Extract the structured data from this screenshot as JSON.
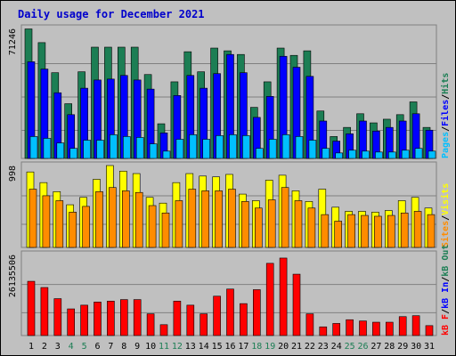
{
  "chart_data": {
    "type": "bar",
    "title": "Daily usage for December 2021",
    "categories": [
      "1",
      "2",
      "3",
      "4",
      "5",
      "6",
      "7",
      "8",
      "9",
      "10",
      "11",
      "12",
      "13",
      "14",
      "15",
      "16",
      "17",
      "18",
      "19",
      "20",
      "21",
      "22",
      "23",
      "24",
      "25",
      "26",
      "27",
      "28",
      "29",
      "30",
      "31"
    ],
    "weekend_days": [
      "4",
      "5",
      "11",
      "12",
      "18",
      "19",
      "25",
      "26"
    ],
    "panels": [
      {
        "ylim": [
          0,
          71246
        ],
        "max_label": "71246",
        "legend": [
          "Pages",
          "Files",
          "Hits"
        ],
        "series": [
          {
            "name": "Hits",
            "color": "#1c7e54",
            "values": [
              71000,
              63500,
              47000,
              30000,
              47500,
              61000,
              61000,
              61000,
              61000,
              46000,
              19000,
              42000,
              58500,
              47500,
              60500,
              59000,
              57000,
              28000,
              42000,
              60500,
              56500,
              59000,
              26000,
              12000,
              17000,
              24500,
              19500,
              21500,
              24000,
              31000,
              17000
            ]
          },
          {
            "name": "Files",
            "color": "#0000ff",
            "values": [
              53000,
              49000,
              36000,
              24000,
              38500,
              43000,
              43500,
              45500,
              43000,
              38000,
              14000,
              34500,
              45500,
              38500,
              46500,
              57000,
              47000,
              22500,
              34000,
              56000,
              50000,
              45000,
              20500,
              9500,
              13500,
              20500,
              15000,
              17000,
              20500,
              24500,
              15500
            ]
          },
          {
            "name": "Pages",
            "color": "#00bfff",
            "values": [
              12000,
              11000,
              8500,
              5500,
              10000,
              10000,
              13000,
              12000,
              11500,
              8000,
              4000,
              10500,
              13000,
              10500,
              12500,
              13000,
              12500,
              5500,
              10500,
              13000,
              12000,
              10000,
              5500,
              3000,
              4500,
              4000,
              3500,
              3500,
              4500,
              5500,
              4000
            ]
          }
        ]
      },
      {
        "ylim": [
          0,
          998
        ],
        "max_label": "998",
        "legend": [
          "Sites",
          "Visits"
        ],
        "series": [
          {
            "name": "Visits",
            "color": "#ffff00",
            "values": [
              920,
              790,
              680,
              520,
              610,
              830,
              998,
              930,
              900,
              610,
              540,
              790,
              900,
              870,
              860,
              890,
              650,
              570,
              820,
              880,
              690,
              560,
              710,
              490,
              440,
              440,
              430,
              450,
              570,
              610,
              480
            ]
          },
          {
            "name": "Sites",
            "color": "#ff8c00",
            "values": [
              710,
              630,
              570,
              430,
              500,
              680,
              730,
              690,
              670,
              510,
              420,
              570,
              710,
              690,
              690,
              710,
              560,
              480,
              580,
              730,
              570,
              480,
              400,
              320,
              400,
              390,
              380,
              390,
              420,
              440,
              400
            ]
          }
        ]
      },
      {
        "ylim": [
          0,
          26135506
        ],
        "max_label": "26135506",
        "legend": [
          "kB F",
          "kB In",
          "kB Out"
        ],
        "series": [
          {
            "name": "kB F",
            "color": "#ff0000",
            "values": [
              17500000,
              15500000,
              11900000,
              8600000,
              9800000,
              10800000,
              11100000,
              11600000,
              11600000,
              7000000,
              3500000,
              11100000,
              9800000,
              7000000,
              12700000,
              15000000,
              10300000,
              14800000,
              23300000,
              25000000,
              19800000,
              7000000,
              2800000,
              3900000,
              5100000,
              4700000,
              4300000,
              4300000,
              6100000,
              6400000,
              3200000
            ]
          }
        ]
      }
    ]
  }
}
